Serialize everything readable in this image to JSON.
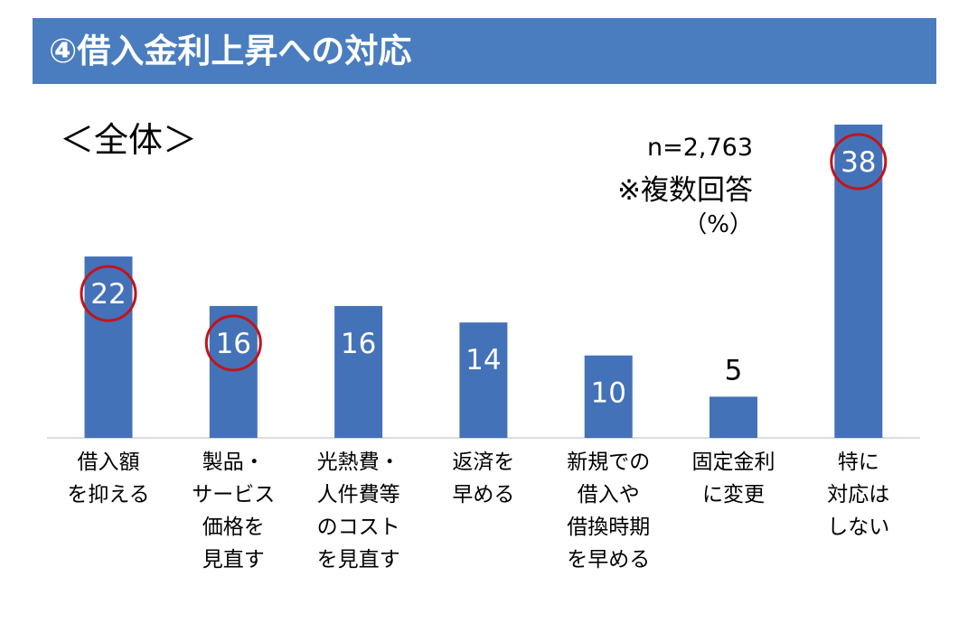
{
  "header": {
    "title": "④借入金利上昇への対応"
  },
  "scope_label": "＜全体＞",
  "sample_size": "n=2,763",
  "note": "※複数回答",
  "unit": "（%）",
  "colors": {
    "header_bg": "#4a7dbf",
    "bar": "#4472b8",
    "highlight_circle": "#c0151b"
  },
  "chart_data": {
    "type": "bar",
    "title": "",
    "xlabel": "",
    "ylabel": "",
    "ylim": [
      0,
      40
    ],
    "grid": false,
    "legend": "none",
    "categories": [
      "借入額\nを抑える",
      "製品・\nサービス\n価格を\n見直す",
      "光熱費・\n人件費等\nのコスト\nを見直す",
      "返済を\n早める",
      "新規での\n借入や\n借換時期\nを早める",
      "固定金利\nに変更",
      "特に\n対応は\nしない"
    ],
    "values": [
      22,
      16,
      16,
      14,
      10,
      5,
      38
    ],
    "data_labels": [
      "22",
      "16",
      "16",
      "14",
      "10",
      "5",
      "38"
    ],
    "highlighted": [
      0,
      1,
      6
    ]
  }
}
